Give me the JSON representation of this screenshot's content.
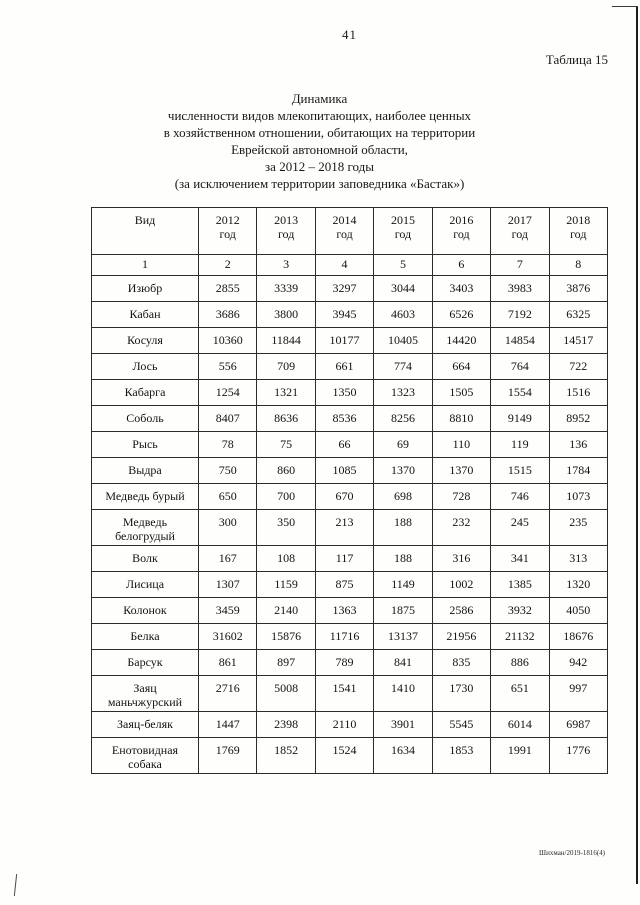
{
  "page": {
    "number": "41",
    "table_label": "Таблица 15",
    "footer_code": "Шихман/2019-1816(4)"
  },
  "title": {
    "lines": [
      "Динамика",
      "численности видов млекопитающих, наиболее ценных",
      "в хозяйственном отношении, обитающих на территории",
      "Еврейской автономной области,",
      "за 2012 – 2018 годы",
      "(за исключением территории заповедника «Бастак»)"
    ]
  },
  "table": {
    "species_header": "Вид",
    "year_suffix": "год",
    "years": [
      "2012",
      "2013",
      "2014",
      "2015",
      "2016",
      "2017",
      "2018"
    ],
    "column_numbers": [
      "1",
      "2",
      "3",
      "4",
      "5",
      "6",
      "7",
      "8"
    ],
    "rows": [
      {
        "species": "Изюбр",
        "values": [
          "2855",
          "3339",
          "3297",
          "3044",
          "3403",
          "3983",
          "3876"
        ]
      },
      {
        "species": "Кабан",
        "values": [
          "3686",
          "3800",
          "3945",
          "4603",
          "6526",
          "7192",
          "6325"
        ]
      },
      {
        "species": "Косуля",
        "values": [
          "10360",
          "11844",
          "10177",
          "10405",
          "14420",
          "14854",
          "14517"
        ]
      },
      {
        "species": "Лось",
        "values": [
          "556",
          "709",
          "661",
          "774",
          "664",
          "764",
          "722"
        ]
      },
      {
        "species": "Кабарга",
        "values": [
          "1254",
          "1321",
          "1350",
          "1323",
          "1505",
          "1554",
          "1516"
        ]
      },
      {
        "species": "Соболь",
        "values": [
          "8407",
          "8636",
          "8536",
          "8256",
          "8810",
          "9149",
          "8952"
        ]
      },
      {
        "species": "Рысь",
        "values": [
          "78",
          "75",
          "66",
          "69",
          "110",
          "119",
          "136"
        ]
      },
      {
        "species": "Выдра",
        "values": [
          "750",
          "860",
          "1085",
          "1370",
          "1370",
          "1515",
          "1784"
        ]
      },
      {
        "species": "Медведь бурый",
        "values": [
          "650",
          "700",
          "670",
          "698",
          "728",
          "746",
          "1073"
        ]
      },
      {
        "species": "Медведь белогрудый",
        "values": [
          "300",
          "350",
          "213",
          "188",
          "232",
          "245",
          "235"
        ]
      },
      {
        "species": "Волк",
        "values": [
          "167",
          "108",
          "117",
          "188",
          "316",
          "341",
          "313"
        ]
      },
      {
        "species": "Лисица",
        "values": [
          "1307",
          "1159",
          "875",
          "1149",
          "1002",
          "1385",
          "1320"
        ]
      },
      {
        "species": "Колонок",
        "values": [
          "3459",
          "2140",
          "1363",
          "1875",
          "2586",
          "3932",
          "4050"
        ]
      },
      {
        "species": "Белка",
        "values": [
          "31602",
          "15876",
          "11716",
          "13137",
          "21956",
          "21132",
          "18676"
        ]
      },
      {
        "species": "Барсук",
        "values": [
          "861",
          "897",
          "789",
          "841",
          "835",
          "886",
          "942"
        ]
      },
      {
        "species": "Заяц маньчжурский",
        "values": [
          "2716",
          "5008",
          "1541",
          "1410",
          "1730",
          "651",
          "997"
        ]
      },
      {
        "species": "Заяц-беляк",
        "values": [
          "1447",
          "2398",
          "2110",
          "3901",
          "5545",
          "6014",
          "6987"
        ]
      },
      {
        "species": "Енотовидная собака",
        "values": [
          "1769",
          "1852",
          "1524",
          "1634",
          "1853",
          "1991",
          "1776"
        ]
      }
    ]
  }
}
